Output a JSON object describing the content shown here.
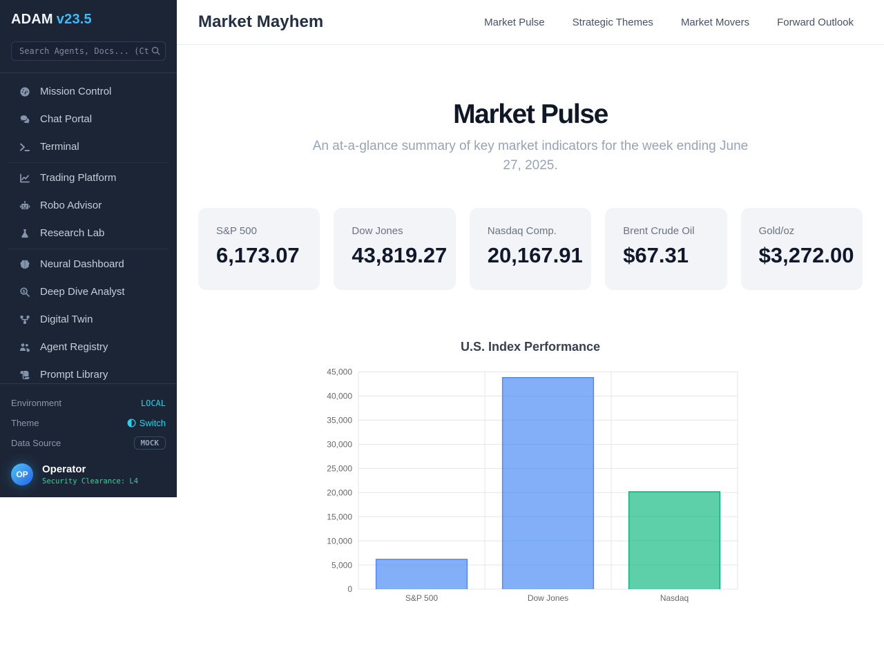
{
  "sidebar": {
    "brand": "ADAM",
    "version": "v23.5",
    "search_placeholder": "Search Agents, Docs... (Ctrl+K)",
    "nav": [
      {
        "label": "Mission Control",
        "icon": "gauge-icon"
      },
      {
        "label": "Chat Portal",
        "icon": "chat-bubbles-icon"
      },
      {
        "label": "Terminal",
        "icon": "terminal-icon"
      },
      {
        "label": "Trading Platform",
        "icon": "chart-line-icon"
      },
      {
        "label": "Robo Advisor",
        "icon": "robot-icon"
      },
      {
        "label": "Research Lab",
        "icon": "flask-icon"
      },
      {
        "label": "Neural Dashboard",
        "icon": "brain-icon"
      },
      {
        "label": "Deep Dive Analyst",
        "icon": "search-dollar-icon"
      },
      {
        "label": "Digital Twin",
        "icon": "network-nodes-icon"
      },
      {
        "label": "Agent Registry",
        "icon": "users-gear-icon"
      },
      {
        "label": "Prompt Library",
        "icon": "scroll-icon"
      }
    ],
    "footer": {
      "environment_label": "Environment",
      "environment_value": "LOCAL",
      "theme_label": "Theme",
      "theme_value": "Switch",
      "data_source_label": "Data Source",
      "data_source_value": "MOCK",
      "user_initials": "OP",
      "user_name": "Operator",
      "user_clearance": "Security Clearance: L4"
    }
  },
  "header": {
    "title": "Market Mayhem",
    "nav": [
      {
        "label": "Market Pulse"
      },
      {
        "label": "Strategic Themes"
      },
      {
        "label": "Market Movers"
      },
      {
        "label": "Forward Outlook"
      }
    ]
  },
  "hero": {
    "title": "Market Pulse",
    "subtitle": "An at-a-glance summary of key market indicators for the week ending June 27, 2025."
  },
  "stats": [
    {
      "label": "S&P 500",
      "value": "6,173.07"
    },
    {
      "label": "Dow Jones",
      "value": "43,819.27"
    },
    {
      "label": "Nasdaq Comp.",
      "value": "20,167.91"
    },
    {
      "label": "Brent Crude Oil",
      "value": "$67.31"
    },
    {
      "label": "Gold/oz",
      "value": "$3,272.00"
    }
  ],
  "chart_data": {
    "type": "bar",
    "title": "U.S. Index Performance",
    "categories": [
      "S&P 500",
      "Dow Jones",
      "Nasdaq"
    ],
    "values": [
      6173.07,
      43819.27,
      20167.91
    ],
    "ylim": [
      0,
      45000
    ],
    "ytick_step": 5000,
    "grid": true,
    "legend": false,
    "bar_colors": [
      "rgba(66,133,244,0.66)",
      "rgba(66,133,244,0.66)",
      "rgba(16,185,129,0.68)"
    ],
    "bar_borders": [
      "#5389f0",
      "#5389f0",
      "#10b07f"
    ],
    "tick_color": "#666666",
    "grid_color": "#e5e5e5"
  }
}
